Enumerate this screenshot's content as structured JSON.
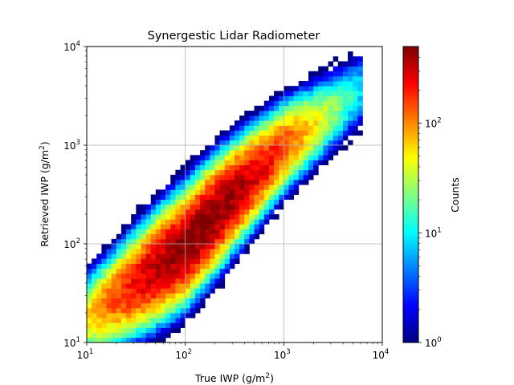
{
  "chart_data": {
    "type": "heatmap",
    "title": "Synergestic Lidar Radiometer",
    "xlabel": "True IWP (g/m²)",
    "xlabel_base": "True IWP (g/m",
    "xlabel_sup": "2",
    "xlabel_tail": ")",
    "ylabel": "Retrieved IWP (g/m²)",
    "ylabel_base": "Retrieved IWP (g/m",
    "ylabel_sup": "2",
    "ylabel_tail": ")",
    "x_scale": "log",
    "y_scale": "log",
    "xlim": [
      10,
      10000
    ],
    "ylim": [
      10,
      10000
    ],
    "x_ticks": [
      {
        "value": 10,
        "base": "10",
        "exp": "1"
      },
      {
        "value": 100,
        "base": "10",
        "exp": "2"
      },
      {
        "value": 1000,
        "base": "10",
        "exp": "3"
      },
      {
        "value": 10000,
        "base": "10",
        "exp": "4"
      }
    ],
    "y_ticks": [
      {
        "value": 10,
        "base": "10",
        "exp": "1"
      },
      {
        "value": 100,
        "base": "10",
        "exp": "2"
      },
      {
        "value": 1000,
        "base": "10",
        "exp": "3"
      },
      {
        "value": 10000,
        "base": "10",
        "exp": "4"
      }
    ],
    "grid": true,
    "colormap": "jet",
    "colorbar": {
      "label": "Counts",
      "scale": "log",
      "range": [
        1,
        500
      ],
      "ticks": [
        {
          "value": 1,
          "base": "10",
          "exp": "0"
        },
        {
          "value": 10,
          "base": "10",
          "exp": "1"
        },
        {
          "value": 100,
          "base": "10",
          "exp": "2"
        }
      ]
    },
    "distribution": {
      "description_free": true,
      "log10_bin_width": 0.05,
      "ridge": [
        [
          1.0,
          1.25
        ],
        [
          1.5,
          1.6
        ],
        [
          2.0,
          1.98
        ],
        [
          2.5,
          2.5
        ],
        [
          3.0,
          2.98
        ],
        [
          3.5,
          3.35
        ]
      ],
      "peak_count": 500,
      "peak_at_log10_x": 2.15
    }
  }
}
